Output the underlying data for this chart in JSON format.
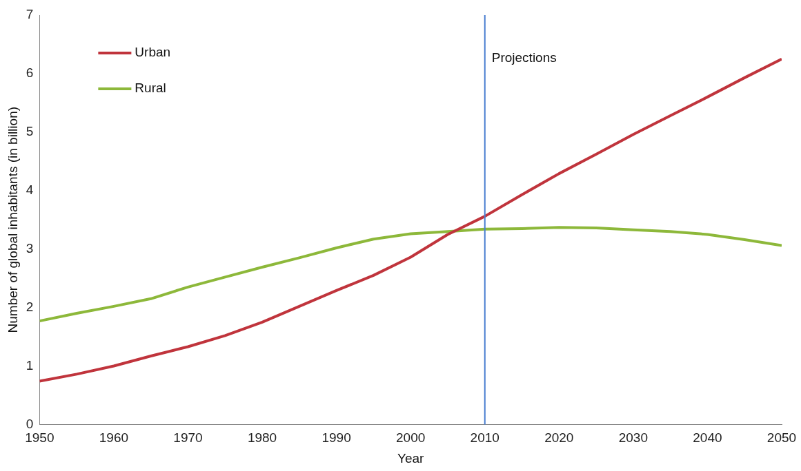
{
  "chart_data": {
    "type": "line",
    "xlabel": "Year",
    "ylabel": "Number of global inhabitants (in billion)",
    "x": [
      1950,
      1955,
      1960,
      1965,
      1970,
      1975,
      1980,
      1985,
      1990,
      1995,
      2000,
      2005,
      2010,
      2015,
      2020,
      2025,
      2030,
      2035,
      2040,
      2045,
      2050
    ],
    "series": [
      {
        "name": "Urban",
        "color": "#c0343c",
        "values": [
          0.74,
          0.86,
          1.0,
          1.17,
          1.33,
          1.52,
          1.75,
          2.02,
          2.29,
          2.55,
          2.86,
          3.25,
          3.56,
          3.93,
          4.29,
          4.62,
          4.96,
          5.28,
          5.6,
          5.93,
          6.25
        ]
      },
      {
        "name": "Rural",
        "color": "#8db83a",
        "values": [
          1.77,
          1.9,
          2.02,
          2.15,
          2.35,
          2.52,
          2.69,
          2.85,
          3.02,
          3.17,
          3.26,
          3.3,
          3.34,
          3.35,
          3.37,
          3.36,
          3.33,
          3.3,
          3.25,
          3.16,
          3.06
        ]
      }
    ],
    "xlim": [
      1950,
      2050
    ],
    "xticks": [
      1950,
      1960,
      1970,
      1980,
      1990,
      2000,
      2010,
      2020,
      2030,
      2040,
      2050
    ],
    "ylim": [
      0,
      7
    ],
    "yticks": [
      0,
      1,
      2,
      3,
      4,
      5,
      6,
      7
    ],
    "ref_lines": [
      {
        "axis": "x",
        "value": 2010,
        "label": "Projections",
        "color": "#4a7fd0"
      }
    ],
    "grid": false,
    "legend": "top left",
    "marker": "none",
    "line_style": "solid"
  }
}
